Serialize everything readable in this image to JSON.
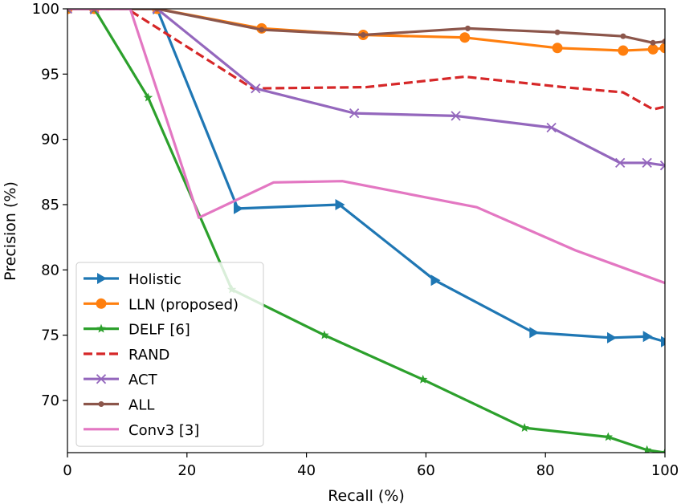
{
  "chart_data": {
    "type": "line",
    "xlabel": "Recall (%)",
    "ylabel": "Precision (%)",
    "xlim": [
      0,
      100
    ],
    "ylim": [
      66,
      100
    ],
    "xticks": [
      0,
      20,
      40,
      60,
      80,
      100
    ],
    "yticks": [
      70,
      75,
      80,
      85,
      90,
      95,
      100
    ],
    "grid": false,
    "legend_position": "lower-left",
    "series": [
      {
        "name": "Holistic",
        "color": "#1f77b4",
        "marker": "triangle-right",
        "dash": "solid",
        "x": [
          0,
          4.5,
          15,
          28.5,
          45.5,
          61.5,
          78,
          91,
          97,
          100
        ],
        "y": [
          100,
          100,
          100,
          84.7,
          85,
          79.2,
          75.2,
          74.8,
          74.9,
          74.5
        ]
      },
      {
        "name": "LLN (proposed)",
        "color": "#ff7f0e",
        "marker": "circle",
        "dash": "solid",
        "x": [
          0,
          4.5,
          15,
          32.5,
          49.5,
          66.5,
          82,
          93,
          98,
          100
        ],
        "y": [
          100,
          100,
          100,
          98.5,
          98,
          97.8,
          97,
          96.8,
          96.9,
          97
        ]
      },
      {
        "name": "DELF [6]",
        "color": "#2ca02c",
        "marker": "star",
        "dash": "solid",
        "x": [
          0,
          4.5,
          13.5,
          27.5,
          43,
          59.5,
          76.5,
          90.5,
          97,
          100
        ],
        "y": [
          100,
          100,
          93.2,
          78.5,
          75,
          71.6,
          67.9,
          67.2,
          66.2,
          66
        ]
      },
      {
        "name": "RAND",
        "color": "#d62728",
        "marker": "none",
        "dash": "dashed",
        "x": [
          0,
          10,
          31,
          50,
          66.5,
          83,
          93,
          98,
          100
        ],
        "y": [
          100,
          100,
          93.9,
          94,
          94.8,
          94,
          93.6,
          92.3,
          92.5
        ]
      },
      {
        "name": "ACT",
        "color": "#9467bd",
        "marker": "x",
        "dash": "solid",
        "x": [
          0,
          4.5,
          15,
          31.5,
          48,
          65,
          81,
          92.5,
          97,
          100
        ],
        "y": [
          100,
          100,
          100,
          93.9,
          92,
          91.8,
          90.9,
          88.2,
          88.2,
          88
        ]
      },
      {
        "name": "ALL",
        "color": "#8c564b",
        "marker": "dot",
        "dash": "solid",
        "x": [
          0,
          4.5,
          15,
          32.5,
          49.5,
          67,
          82,
          93,
          98,
          100
        ],
        "y": [
          100,
          100,
          100,
          98.4,
          98,
          98.5,
          98.2,
          97.9,
          97.4,
          97.5
        ]
      },
      {
        "name": "Conv3 [3]",
        "color": "#e377c2",
        "marker": "none",
        "dash": "solid",
        "x": [
          0,
          10.5,
          22,
          34.5,
          46,
          68.5,
          85,
          100
        ],
        "y": [
          100,
          100,
          84,
          86.7,
          86.8,
          84.8,
          81.5,
          79
        ]
      }
    ]
  }
}
